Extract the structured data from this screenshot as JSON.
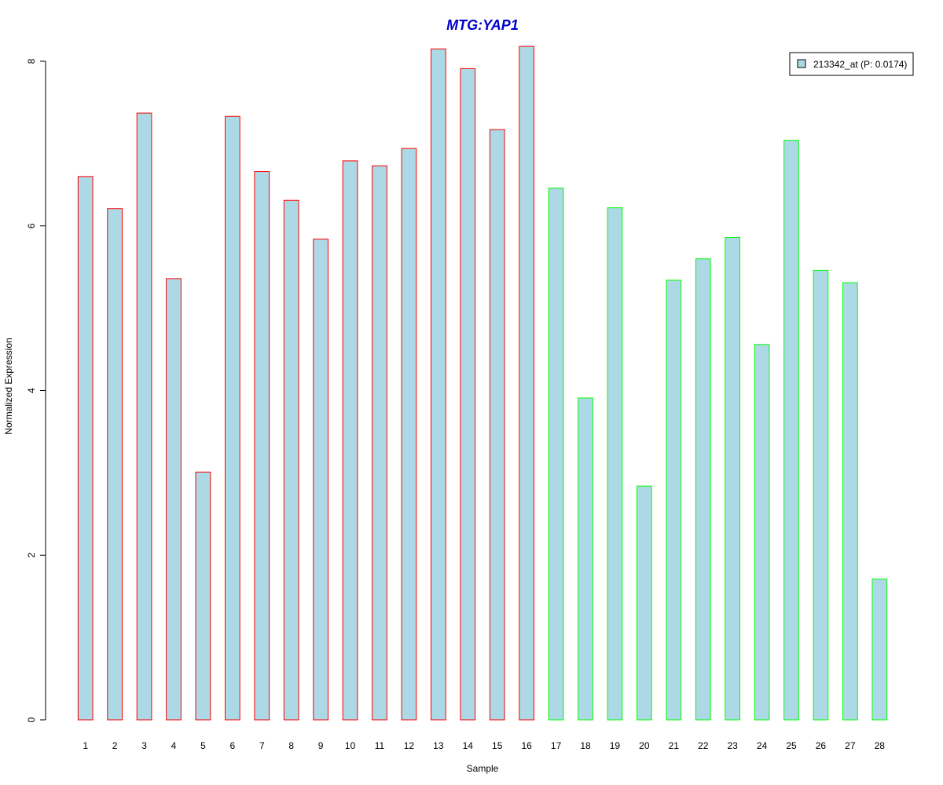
{
  "chart_data": {
    "type": "bar",
    "title": "MTG:YAP1",
    "xlabel": "Sample",
    "ylabel": "Normalized Expression",
    "categories": [
      "1",
      "2",
      "3",
      "4",
      "5",
      "6",
      "7",
      "8",
      "9",
      "10",
      "11",
      "12",
      "13",
      "14",
      "15",
      "16",
      "17",
      "18",
      "19",
      "20",
      "21",
      "22",
      "23",
      "24",
      "25",
      "26",
      "27",
      "28"
    ],
    "values": [
      6.6,
      6.21,
      7.37,
      5.36,
      3.01,
      7.33,
      6.66,
      6.31,
      5.84,
      6.79,
      6.73,
      6.94,
      8.15,
      7.91,
      7.17,
      8.18,
      6.46,
      3.91,
      6.22,
      2.84,
      5.34,
      5.6,
      5.86,
      4.56,
      7.04,
      5.46,
      5.31,
      1.71
    ],
    "groups": [
      "red",
      "red",
      "red",
      "red",
      "red",
      "red",
      "red",
      "red",
      "red",
      "red",
      "red",
      "red",
      "red",
      "red",
      "red",
      "red",
      "green",
      "green",
      "green",
      "green",
      "green",
      "green",
      "green",
      "green",
      "green",
      "green",
      "green",
      "green"
    ],
    "ylim": [
      0,
      8
    ],
    "yticks": [
      "0",
      "2",
      "4",
      "6",
      "8"
    ],
    "grid": false,
    "legend": {
      "position": "top-right",
      "entries": [
        {
          "label": "213342_at (P: 0.0174)"
        }
      ]
    },
    "colors": {
      "bar_fill": "#add8e6",
      "group_red_border": "#ff0000",
      "group_green_border": "#00ff00",
      "title": "#0000cd"
    }
  }
}
